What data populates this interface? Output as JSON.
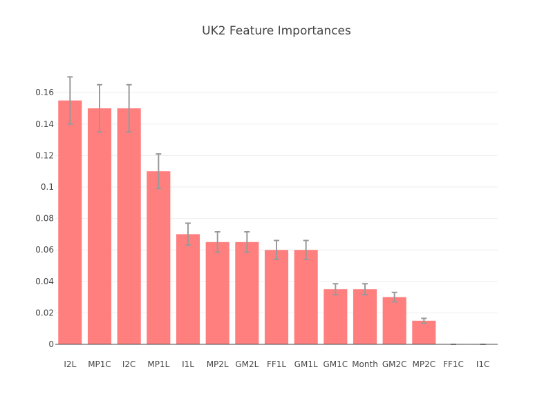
{
  "chart_data": {
    "type": "bar",
    "title": "UK2 Feature Importances",
    "xlabel": "",
    "ylabel": "",
    "categories": [
      "I2L",
      "MP1C",
      "I2C",
      "MP1L",
      "I1L",
      "MP2L",
      "GM2L",
      "FF1L",
      "GM1L",
      "GM1C",
      "Month",
      "GM2C",
      "MP2C",
      "FF1C",
      "I1C"
    ],
    "values": [
      0.155,
      0.15,
      0.15,
      0.11,
      0.07,
      0.065,
      0.065,
      0.06,
      0.06,
      0.035,
      0.035,
      0.03,
      0.015,
      0.0,
      0.0
    ],
    "errors": [
      0.015,
      0.015,
      0.015,
      0.011,
      0.007,
      0.0065,
      0.0065,
      0.006,
      0.006,
      0.0035,
      0.0035,
      0.003,
      0.0015,
      0.0,
      0.0
    ],
    "ylim": [
      0,
      0.175
    ],
    "yticks": [
      0,
      0.02,
      0.04,
      0.06,
      0.08,
      0.1,
      0.12,
      0.14,
      0.16
    ],
    "ytick_labels": [
      "0",
      "0.02",
      "0.04",
      "0.06",
      "0.08",
      "0.1",
      "0.12",
      "0.14",
      "0.16"
    ],
    "grid": true,
    "colors": {
      "bar": "#ff7f7f",
      "error_bar": "#999999",
      "grid": "#eeeeee",
      "text": "#444444"
    }
  }
}
